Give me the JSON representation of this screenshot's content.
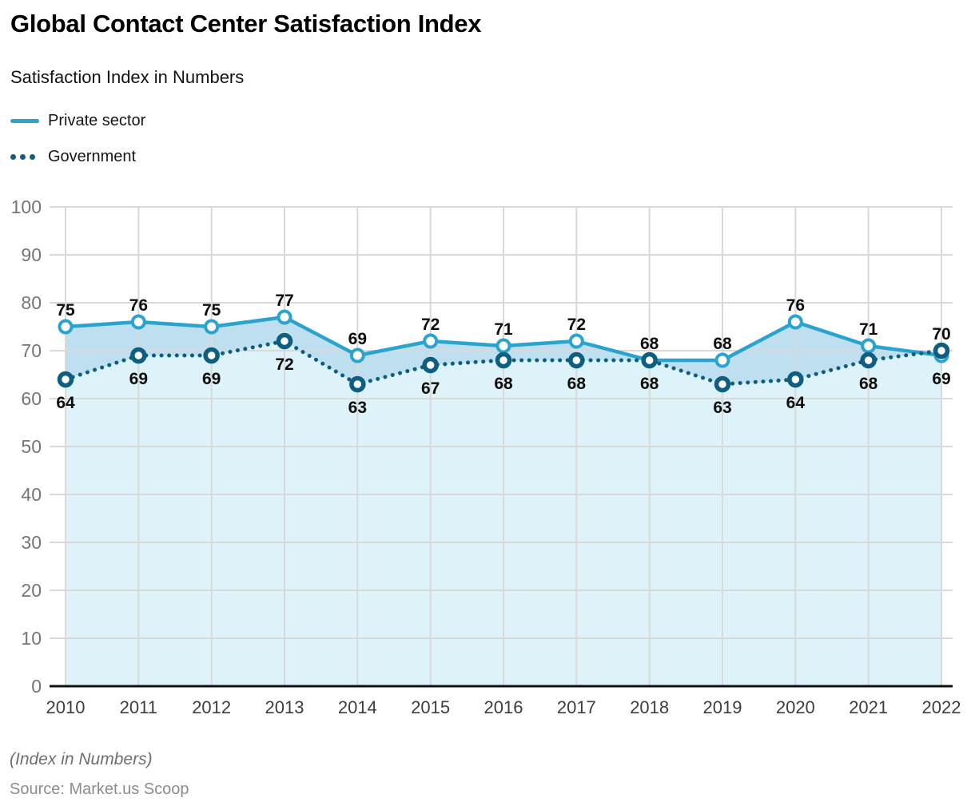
{
  "header": {
    "title": "Global Contact Center Satisfaction Index",
    "subtitle": "Satisfaction Index in Numbers"
  },
  "legend": [
    {
      "label": "Private sector",
      "style": "solid-line",
      "color": "#2BA3CF"
    },
    {
      "label": "Government",
      "style": "dotted-line",
      "color": "#0D5E80"
    }
  ],
  "footer": {
    "note": "(Index in Numbers)",
    "source": "Source: Market.us Scoop"
  },
  "chart_data": {
    "type": "line",
    "title": "Global Contact Center Satisfaction Index",
    "subtitle": "Satisfaction Index in Numbers",
    "x": [
      2010,
      2011,
      2012,
      2013,
      2014,
      2015,
      2016,
      2017,
      2018,
      2019,
      2020,
      2021,
      2022
    ],
    "series": [
      {
        "name": "Private sector",
        "values": [
          75,
          76,
          75,
          77,
          69,
          72,
          71,
          72,
          68,
          68,
          76,
          71,
          69
        ],
        "color": "#2BA3CF",
        "line_style": "solid",
        "marker": "open-circle",
        "area_fill": "#BEDFEF"
      },
      {
        "name": "Government",
        "values": [
          64,
          69,
          69,
          72,
          63,
          67,
          68,
          68,
          68,
          63,
          64,
          68,
          70
        ],
        "color": "#0D5E80",
        "line_style": "dotted",
        "marker": "thick-ring",
        "area_fill": "#DDF2F9"
      }
    ],
    "ylim": [
      0,
      100
    ],
    "yticks": [
      0,
      10,
      20,
      30,
      40,
      50,
      60,
      70,
      80,
      90,
      100
    ],
    "grid": true,
    "gridline_color": "#D9D9D9",
    "axis_color": "#111111",
    "y_tick_label_color": "#757575",
    "x_tick_label_color": "#3D3D3D",
    "data_label_color": "#0D0D0D",
    "data_labels": true,
    "legend_position": "top-left"
  }
}
